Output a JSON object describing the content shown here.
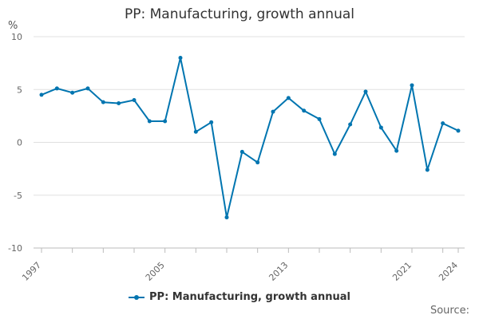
{
  "chart_data": {
    "type": "line",
    "title": "PP: Manufacturing, growth annual",
    "ylabel": "%",
    "xlabel": "",
    "ylim": [
      -10,
      10
    ],
    "y_ticks": [
      10,
      5,
      0,
      -5,
      -10
    ],
    "x_tick_labels": [
      "1997",
      "2005",
      "2013",
      "2021",
      "2024"
    ],
    "x": [
      1997,
      1998,
      1999,
      2000,
      2001,
      2002,
      2003,
      2004,
      2005,
      2006,
      2007,
      2008,
      2009,
      2010,
      2011,
      2012,
      2013,
      2014,
      2015,
      2016,
      2017,
      2018,
      2019,
      2020,
      2021,
      2022,
      2023,
      2024
    ],
    "series": [
      {
        "name": "PP: Manufacturing, growth annual",
        "color": "#0075b0",
        "values": [
          4.5,
          5.1,
          4.7,
          5.1,
          3.8,
          3.7,
          4.0,
          2.0,
          2.0,
          8.0,
          1.0,
          1.9,
          -7.1,
          -0.9,
          -1.9,
          2.9,
          4.2,
          3.0,
          2.2,
          -1.1,
          1.7,
          4.8,
          1.4,
          -0.8,
          5.4,
          -2.6,
          1.8,
          1.1
        ]
      }
    ],
    "grid": true,
    "legend": "bottom"
  },
  "legend_label": "PP: Manufacturing, growth annual",
  "source_label": "Source:"
}
